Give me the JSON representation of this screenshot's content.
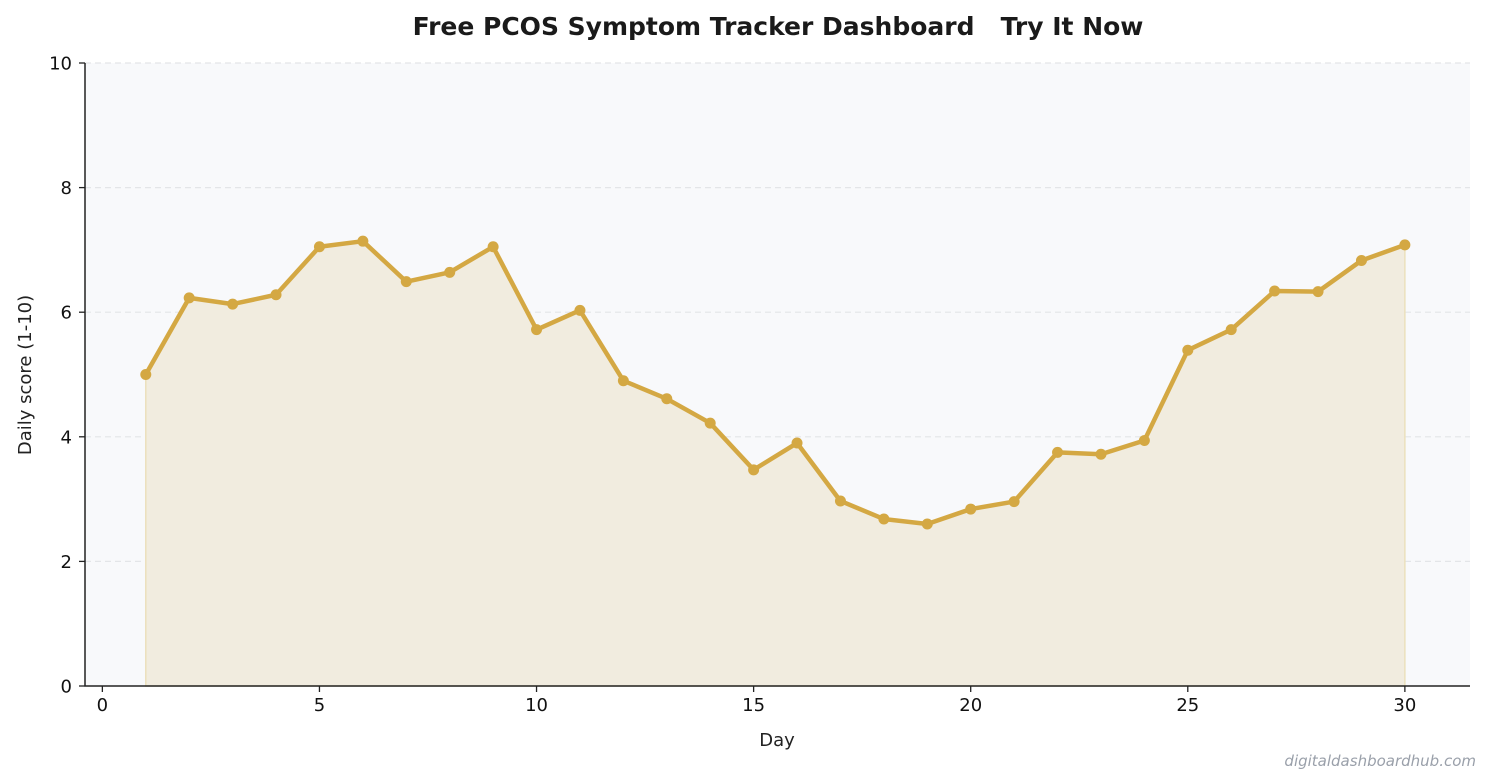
{
  "chart_data": {
    "type": "line",
    "title": "Free PCOS Symptom Tracker Dashboard   Try It Now",
    "xlabel": "Day",
    "ylabel": "Daily score (1-10)",
    "xlim": [
      -0.4,
      31.5
    ],
    "ylim": [
      0,
      10
    ],
    "x_ticks": [
      0,
      5,
      10,
      15,
      20,
      25,
      30
    ],
    "y_ticks": [
      0,
      2,
      4,
      6,
      8,
      10
    ],
    "grid": "horizontal-dashed",
    "fill_under_line": true,
    "series": [
      {
        "x": [
          1,
          2,
          3,
          4,
          5,
          6,
          7,
          8,
          9,
          10,
          11,
          12,
          13,
          14,
          15,
          16,
          17,
          18,
          19,
          20,
          21,
          22,
          23,
          24,
          25,
          26,
          27,
          28,
          29,
          30
        ],
        "values": [
          5.0,
          6.23,
          6.13,
          6.28,
          7.05,
          7.14,
          6.49,
          6.64,
          7.05,
          5.72,
          6.03,
          4.9,
          4.61,
          4.22,
          3.47,
          3.9,
          2.97,
          2.68,
          2.6,
          2.84,
          2.96,
          3.75,
          3.72,
          3.94,
          5.39,
          5.72,
          6.34,
          6.33,
          6.83,
          7.08
        ]
      }
    ]
  },
  "colors": {
    "line": "#d4a843",
    "fill": "#f1ecdf",
    "plot_background": "#f8f9fb",
    "grid": "#e3e5e8",
    "axis": "#222222"
  },
  "watermark": "digitaldashboardhub.com"
}
